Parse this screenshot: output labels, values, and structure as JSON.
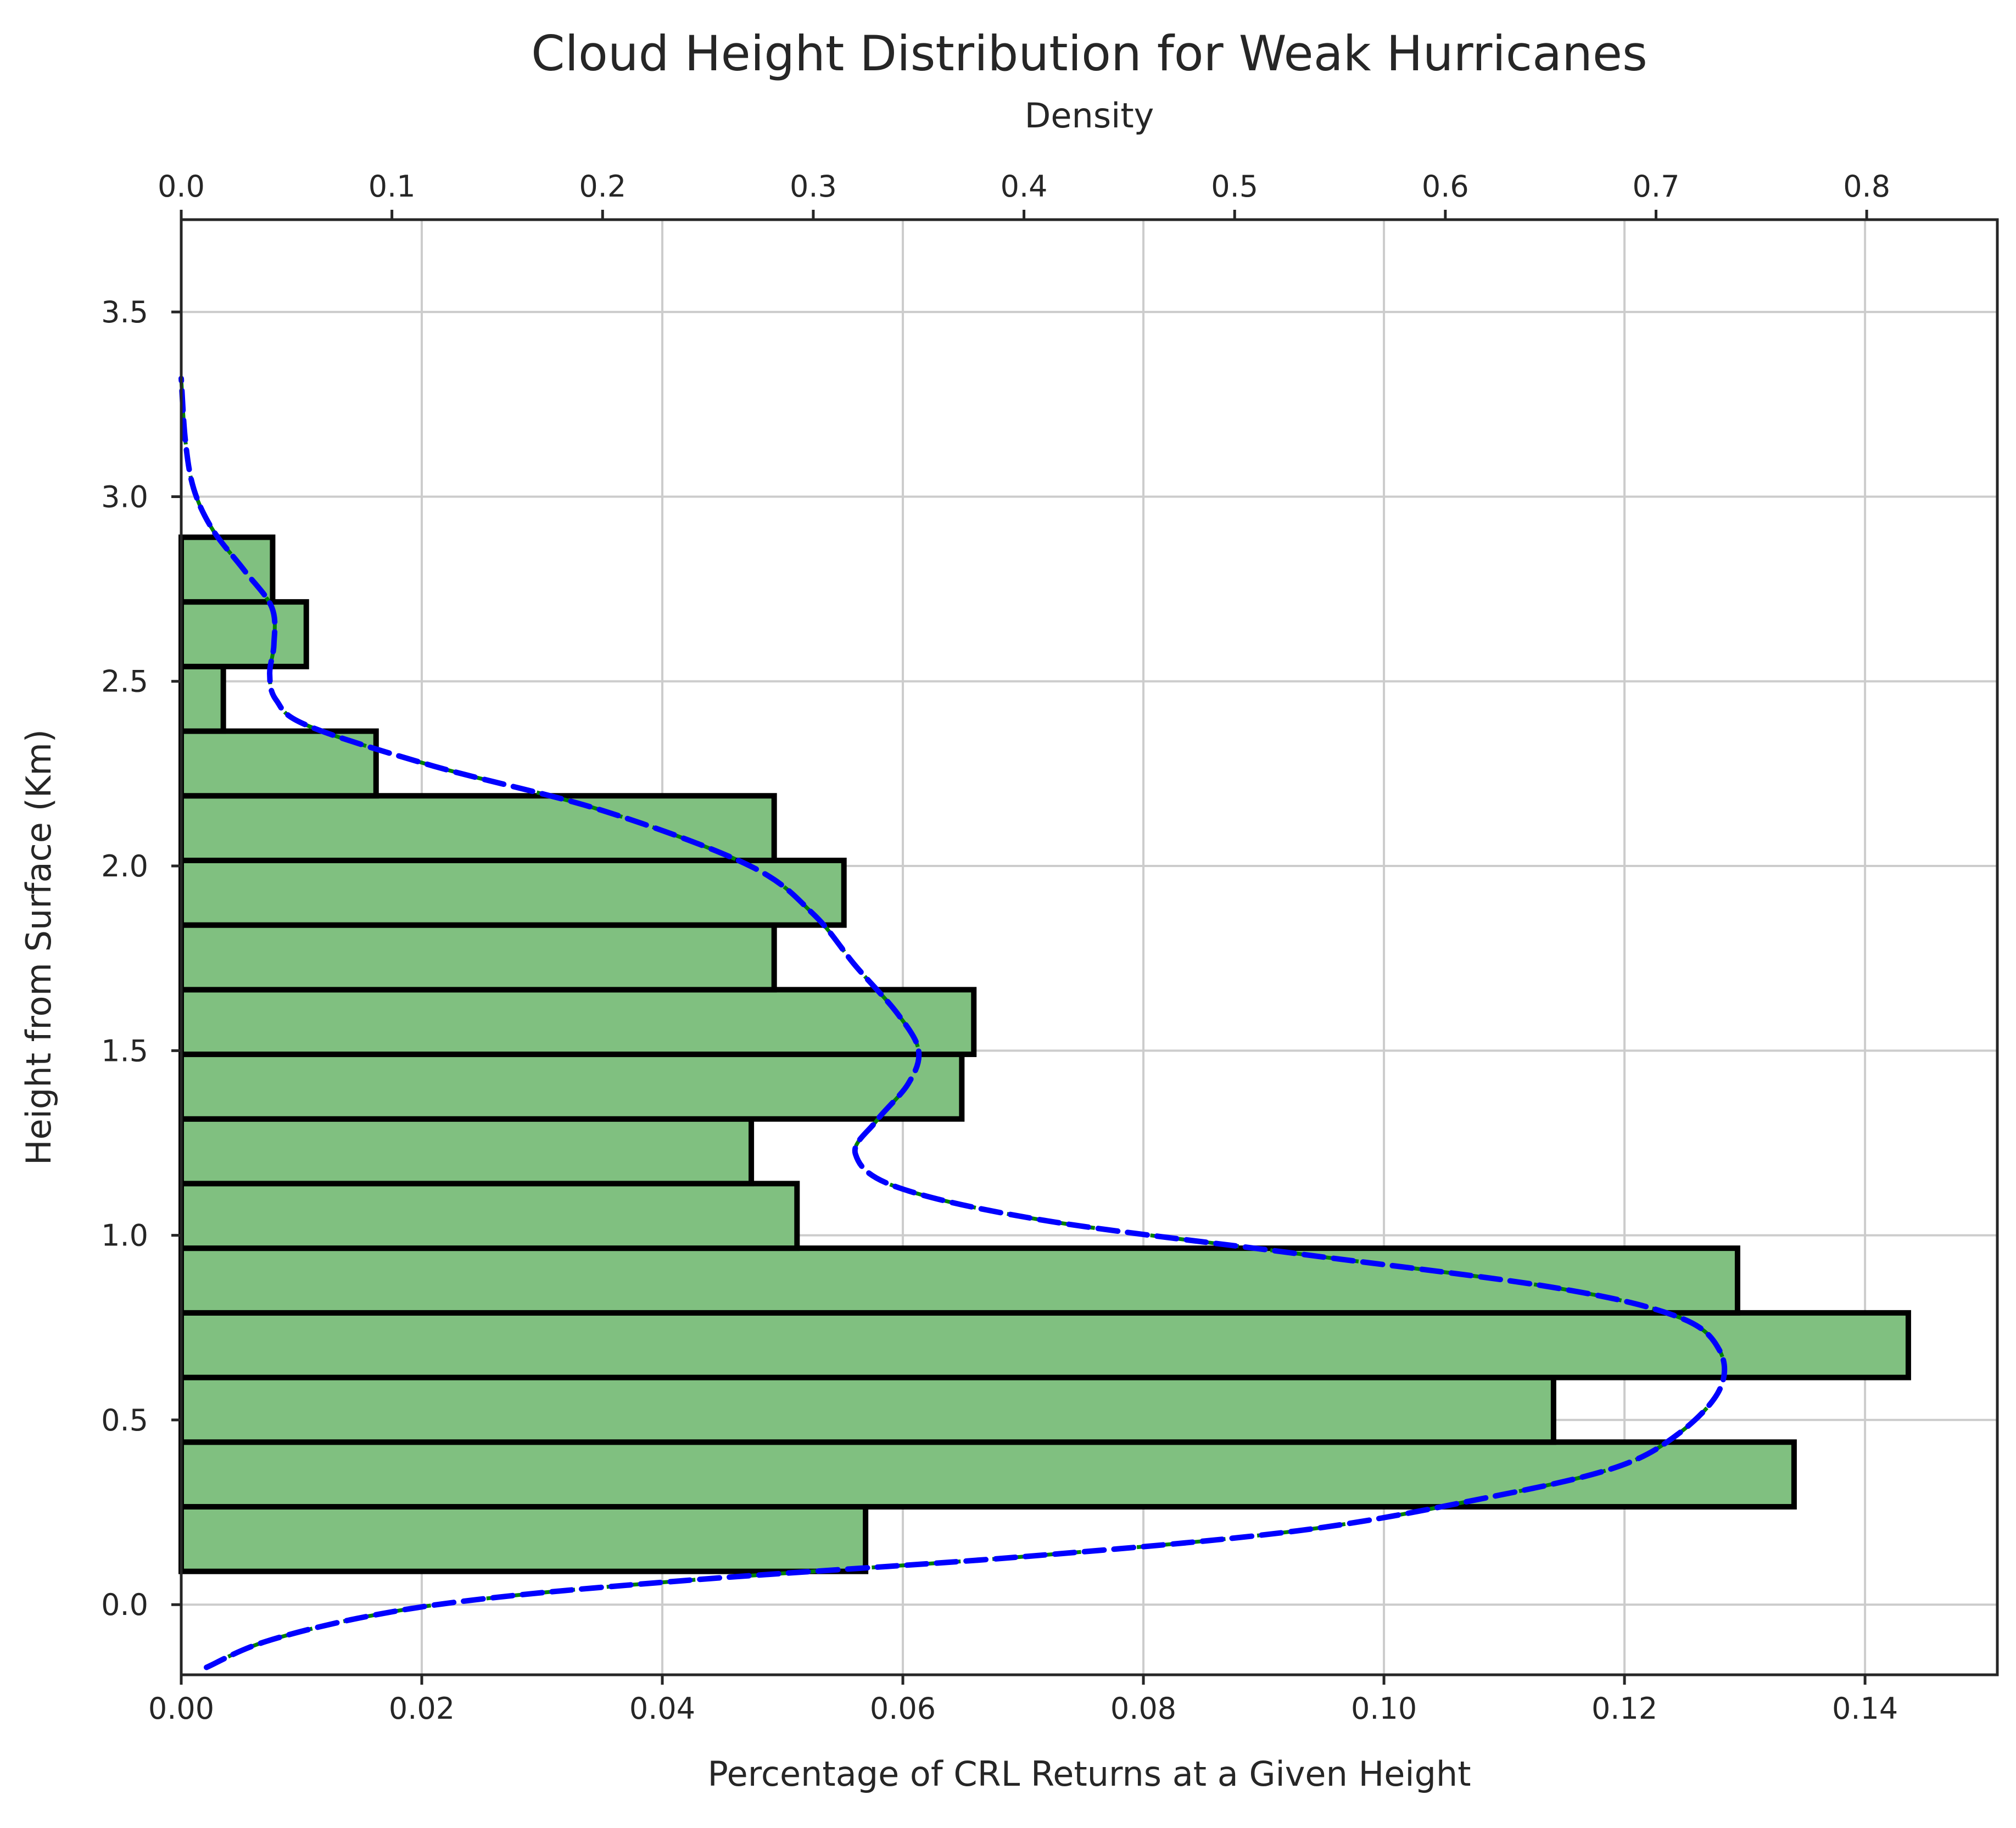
{
  "chart_data": {
    "type": "bar",
    "orientation": "horizontal",
    "title": "Cloud Height Distribution for Weak Hurricanes",
    "xlabel": "Percentage of CRL Returns at a Given Height",
    "ylabel": "Height from Surface (Km)",
    "x2label": "Density",
    "xlim": [
      0,
      0.151
    ],
    "ylim": [
      -0.19,
      3.75
    ],
    "x2lim": [
      0,
      0.862
    ],
    "x_ticks": [
      "0.00",
      "0.02",
      "0.04",
      "0.06",
      "0.08",
      "0.10",
      "0.12",
      "0.14"
    ],
    "y_ticks": [
      "0.0",
      "0.5",
      "1.0",
      "1.5",
      "2.0",
      "2.5",
      "3.0",
      "3.5"
    ],
    "x2_ticks": [
      "0.0",
      "0.1",
      "0.2",
      "0.3",
      "0.4",
      "0.5",
      "0.6",
      "0.7",
      "0.8"
    ],
    "grid": true,
    "bar_color": "#80c080",
    "bar_edge_color": "#000000",
    "bin_edges": [
      0.09,
      0.265,
      0.44,
      0.615,
      0.79,
      0.965,
      1.14,
      1.315,
      1.49,
      1.665,
      1.84,
      2.015,
      2.19,
      2.365,
      2.54,
      2.715,
      2.89
    ],
    "values": [
      0.0569,
      0.1341,
      0.1141,
      0.1436,
      0.1294,
      0.0512,
      0.0474,
      0.0649,
      0.0659,
      0.0493,
      0.0551,
      0.0493,
      0.0162,
      0.0035,
      0.0104,
      0.0076
    ],
    "kde": {
      "name": "Density",
      "line_color": "#0000ff",
      "underlay_color": "#008000",
      "style": "dashed",
      "points": [
        {
          "density": 0.012,
          "height": -0.17
        },
        {
          "density": 0.04,
          "height": -0.1
        },
        {
          "density": 0.09,
          "height": -0.03
        },
        {
          "density": 0.15,
          "height": 0.02
        },
        {
          "density": 0.25,
          "height": 0.07
        },
        {
          "density": 0.4,
          "height": 0.13
        },
        {
          "density": 0.53,
          "height": 0.2
        },
        {
          "density": 0.62,
          "height": 0.29
        },
        {
          "density": 0.68,
          "height": 0.37
        },
        {
          "density": 0.71,
          "height": 0.46
        },
        {
          "density": 0.73,
          "height": 0.58
        },
        {
          "density": 0.73,
          "height": 0.69
        },
        {
          "density": 0.71,
          "height": 0.78
        },
        {
          "density": 0.65,
          "height": 0.86
        },
        {
          "density": 0.53,
          "height": 0.95
        },
        {
          "density": 0.41,
          "height": 1.04
        },
        {
          "density": 0.34,
          "height": 1.13
        },
        {
          "density": 0.32,
          "height": 1.22
        },
        {
          "density": 0.33,
          "height": 1.31
        },
        {
          "density": 0.345,
          "height": 1.41
        },
        {
          "density": 0.35,
          "height": 1.5
        },
        {
          "density": 0.34,
          "height": 1.6
        },
        {
          "density": 0.32,
          "height": 1.73
        },
        {
          "density": 0.3,
          "height": 1.87
        },
        {
          "density": 0.27,
          "height": 2.0
        },
        {
          "density": 0.2,
          "height": 2.15
        },
        {
          "density": 0.12,
          "height": 2.27
        },
        {
          "density": 0.06,
          "height": 2.38
        },
        {
          "density": 0.045,
          "height": 2.45
        },
        {
          "density": 0.042,
          "height": 2.52
        },
        {
          "density": 0.044,
          "height": 2.6
        },
        {
          "density": 0.043,
          "height": 2.7
        },
        {
          "density": 0.03,
          "height": 2.8
        },
        {
          "density": 0.015,
          "height": 2.91
        },
        {
          "density": 0.006,
          "height": 3.02
        },
        {
          "density": 0.002,
          "height": 3.15
        },
        {
          "density": 0.0,
          "height": 3.32
        }
      ]
    }
  }
}
